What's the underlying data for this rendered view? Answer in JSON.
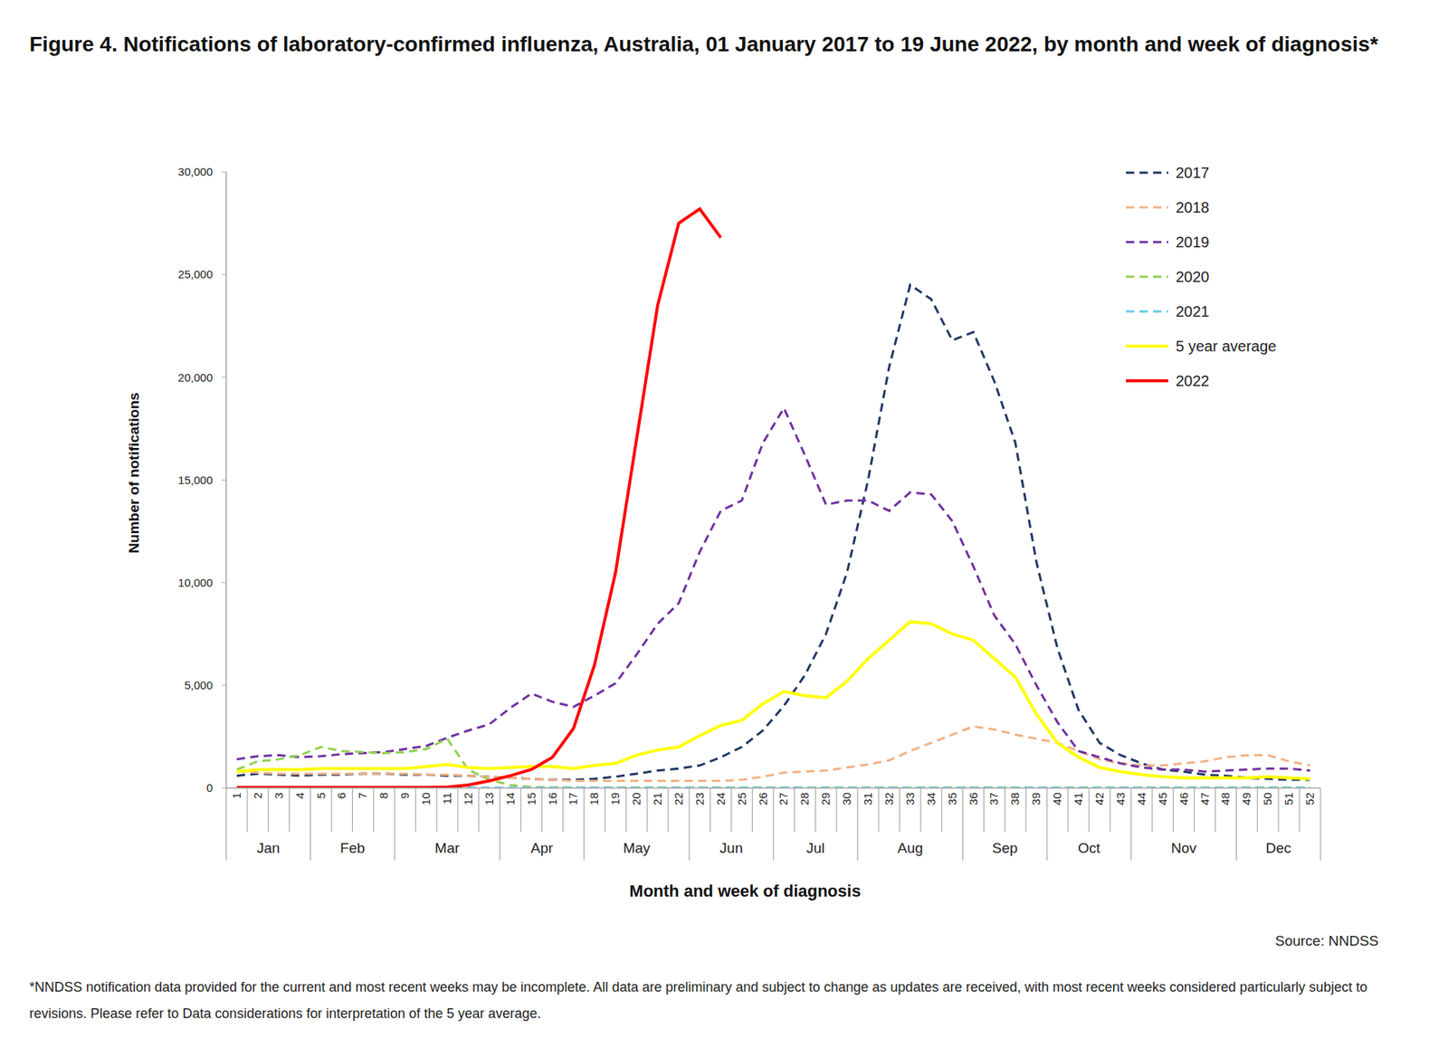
{
  "chart_data": {
    "type": "line",
    "title": "Figure 4. Notifications of laboratory-confirmed influenza, Australia, 01 January 2017 to 19 June 2022, by month and week of diagnosis*",
    "x_label": "Month and week of diagnosis",
    "y_label": "Number of notifications",
    "source": "Source: NNDSS",
    "footnote": "*NNDSS notification data provided for the current and most recent weeks may be incomplete. All data are preliminary and subject to change as updates are received, with most recent weeks considered particularly subject to revisions. Please refer to Data considerations for interpretation of the 5 year average.",
    "categories": [
      1,
      2,
      3,
      4,
      5,
      6,
      7,
      8,
      9,
      10,
      11,
      12,
      13,
      14,
      15,
      16,
      17,
      18,
      19,
      20,
      21,
      22,
      23,
      24,
      25,
      26,
      27,
      28,
      29,
      30,
      31,
      32,
      33,
      34,
      35,
      36,
      37,
      38,
      39,
      40,
      41,
      42,
      43,
      44,
      45,
      46,
      47,
      48,
      49,
      50,
      51,
      52
    ],
    "month_groups": [
      {
        "label": "Jan",
        "first_week": 1,
        "last_week": 4
      },
      {
        "label": "Feb",
        "first_week": 5,
        "last_week": 8
      },
      {
        "label": "Mar",
        "first_week": 9,
        "last_week": 13
      },
      {
        "label": "Apr",
        "first_week": 14,
        "last_week": 17
      },
      {
        "label": "May",
        "first_week": 18,
        "last_week": 22
      },
      {
        "label": "Jun",
        "first_week": 23,
        "last_week": 26
      },
      {
        "label": "Jul",
        "first_week": 27,
        "last_week": 30
      },
      {
        "label": "Aug",
        "first_week": 31,
        "last_week": 35
      },
      {
        "label": "Sep",
        "first_week": 36,
        "last_week": 39
      },
      {
        "label": "Oct",
        "first_week": 40,
        "last_week": 43
      },
      {
        "label": "Nov",
        "first_week": 44,
        "last_week": 48
      },
      {
        "label": "Dec",
        "first_week": 49,
        "last_week": 52
      }
    ],
    "series": [
      {
        "name": "2017",
        "color": "#203864",
        "line_style": "dashed",
        "values": [
          600,
          700,
          650,
          600,
          650,
          650,
          700,
          700,
          650,
          650,
          600,
          600,
          550,
          500,
          450,
          400,
          400,
          450,
          550,
          700,
          850,
          950,
          1100,
          1500,
          2000,
          2800,
          4000,
          5500,
          7500,
          10500,
          15000,
          20500,
          24500,
          23800,
          21800,
          22200,
          19800,
          16800,
          11000,
          6800,
          3800,
          2200,
          1600,
          1200,
          900,
          800,
          650,
          600,
          500,
          450,
          400,
          400
        ]
      },
      {
        "name": "2018",
        "color": "#F4B183",
        "line_style": "dashed",
        "values": [
          800,
          750,
          700,
          700,
          700,
          700,
          700,
          700,
          700,
          650,
          650,
          600,
          550,
          500,
          450,
          400,
          350,
          350,
          350,
          350,
          350,
          350,
          350,
          350,
          400,
          550,
          750,
          800,
          850,
          1000,
          1150,
          1350,
          1800,
          2200,
          2600,
          3000,
          2850,
          2600,
          2400,
          2200,
          1800,
          1400,
          1200,
          1100,
          1100,
          1200,
          1300,
          1500,
          1600,
          1600,
          1300,
          1100
        ]
      },
      {
        "name": "2019",
        "color": "#7030A0",
        "line_style": "dashed",
        "values": [
          1400,
          1550,
          1600,
          1500,
          1550,
          1650,
          1700,
          1750,
          1900,
          2050,
          2450,
          2800,
          3100,
          3900,
          4600,
          4200,
          3950,
          4500,
          5100,
          6500,
          8000,
          9000,
          11500,
          13500,
          14000,
          16800,
          18500,
          16200,
          13800,
          14000,
          14000,
          13500,
          14400,
          14300,
          13000,
          10800,
          8400,
          7000,
          5000,
          3200,
          1800,
          1500,
          1200,
          1000,
          900,
          900,
          800,
          850,
          900,
          950,
          950,
          850
        ]
      },
      {
        "name": "2020",
        "color": "#92D050",
        "line_style": "dashed",
        "values": [
          900,
          1300,
          1400,
          1600,
          2000,
          1800,
          1750,
          1700,
          1750,
          1900,
          2400,
          900,
          400,
          150,
          50,
          40,
          30,
          30,
          30,
          30,
          30,
          30,
          30,
          30,
          30,
          30,
          30,
          30,
          30,
          30,
          30,
          30,
          30,
          30,
          30,
          30,
          30,
          30,
          30,
          30,
          30,
          30,
          30,
          30,
          30,
          30,
          30,
          30,
          30,
          30,
          30,
          30
        ]
      },
      {
        "name": "2021",
        "color": "#66CCEE",
        "line_style": "dashed",
        "values": [
          20,
          20,
          20,
          20,
          20,
          20,
          20,
          20,
          20,
          20,
          20,
          20,
          20,
          20,
          20,
          20,
          20,
          20,
          20,
          20,
          20,
          20,
          20,
          20,
          20,
          20,
          20,
          20,
          20,
          20,
          20,
          20,
          20,
          20,
          20,
          20,
          20,
          20,
          20,
          20,
          20,
          20,
          20,
          20,
          20,
          20,
          20,
          20,
          20,
          20,
          20,
          20
        ]
      },
      {
        "name": "5 year average",
        "color": "#FFFF00",
        "line_style": "solid",
        "values": [
          800,
          900,
          900,
          900,
          950,
          950,
          950,
          950,
          950,
          1050,
          1150,
          1000,
          950,
          1000,
          1050,
          1050,
          950,
          1100,
          1200,
          1600,
          1850,
          2000,
          2550,
          3050,
          3300,
          4100,
          4700,
          4500,
          4400,
          5200,
          6300,
          7200,
          8100,
          8000,
          7500,
          7200,
          6300,
          5400,
          3600,
          2200,
          1500,
          1000,
          800,
          650,
          550,
          500,
          500,
          500,
          500,
          550,
          500,
          450
        ]
      },
      {
        "name": "2022",
        "color": "#FF0000",
        "line_style": "solid",
        "values": [
          30,
          30,
          30,
          30,
          30,
          30,
          30,
          30,
          30,
          30,
          50,
          150,
          350,
          600,
          900,
          1500,
          2900,
          6000,
          10500,
          17000,
          23500,
          27500,
          28200,
          26800,
          null,
          null,
          null,
          null,
          null,
          null,
          null,
          null,
          null,
          null,
          null,
          null,
          null,
          null,
          null,
          null,
          null,
          null,
          null,
          null,
          null,
          null,
          null,
          null,
          null,
          null,
          null,
          null
        ]
      }
    ],
    "ylim": [
      0,
      30000
    ],
    "yticks": [
      0,
      {
        "value": 5000,
        "label": "5,000"
      },
      {
        "value": 10000,
        "label": "10,000"
      },
      {
        "value": 15000,
        "label": "15,000"
      },
      {
        "value": 20000,
        "label": "20,000"
      },
      {
        "value": 25000,
        "label": "25,000"
      },
      {
        "value": 30000,
        "label": "30,000"
      }
    ],
    "grid": false,
    "legend": "upper right"
  }
}
